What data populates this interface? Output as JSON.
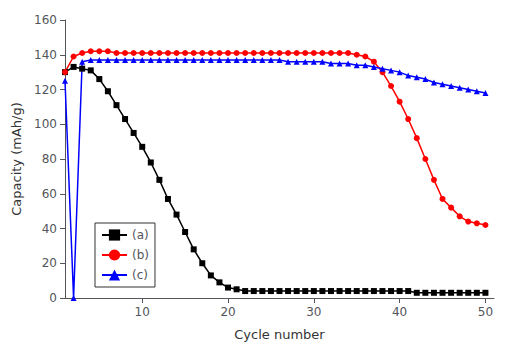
{
  "chart_data": {
    "type": "line",
    "xlabel": "Cycle number",
    "ylabel": "Capacity (mAh/g)",
    "x": [
      1,
      2,
      3,
      4,
      5,
      6,
      7,
      8,
      9,
      10,
      11,
      12,
      13,
      14,
      15,
      16,
      17,
      18,
      19,
      20,
      21,
      22,
      23,
      24,
      25,
      26,
      27,
      28,
      29,
      30,
      31,
      32,
      33,
      34,
      35,
      36,
      37,
      38,
      39,
      40,
      41,
      42,
      43,
      44,
      45,
      46,
      47,
      48,
      49,
      50
    ],
    "series": [
      {
        "name": "(a)",
        "color": "#000000",
        "marker": "square",
        "values": [
          130,
          133,
          132,
          131,
          126,
          119,
          111,
          103,
          95,
          87,
          78,
          68,
          57,
          48,
          38,
          28,
          20,
          13,
          9,
          6,
          5,
          4,
          4,
          4,
          4,
          4,
          4,
          4,
          4,
          4,
          4,
          4,
          4,
          4,
          4,
          4,
          4,
          4,
          4,
          4,
          4,
          3,
          3,
          3,
          3,
          3,
          3,
          3,
          3,
          3
        ]
      },
      {
        "name": "(b)",
        "color": "#ff0000",
        "marker": "circle",
        "values": [
          130,
          139,
          141,
          142,
          142,
          142,
          141,
          141,
          141,
          141,
          141,
          141,
          141,
          141,
          141,
          141,
          141,
          141,
          141,
          141,
          141,
          141,
          141,
          141,
          141,
          141,
          141,
          141,
          141,
          141,
          141,
          141,
          141,
          141,
          140,
          139,
          136,
          130,
          122,
          113,
          103,
          92,
          80,
          68,
          57,
          52,
          47,
          44,
          43,
          42
        ]
      },
      {
        "name": "(c)",
        "color": "#0000ff",
        "marker": "triangle",
        "values": [
          125,
          0,
          136,
          137,
          137,
          137,
          137,
          137,
          137,
          137,
          137,
          137,
          137,
          137,
          137,
          137,
          137,
          137,
          137,
          137,
          137,
          137,
          137,
          137,
          137,
          137,
          136,
          136,
          136,
          136,
          136,
          135,
          135,
          135,
          134,
          134,
          133,
          132,
          131,
          130,
          128,
          127,
          126,
          124,
          123,
          122,
          121,
          120,
          119,
          118
        ]
      }
    ],
    "xlim": [
      1,
      51
    ],
    "xticks": [
      10,
      20,
      30,
      40,
      50
    ],
    "ylim": [
      0,
      160
    ],
    "yticks": [
      0,
      20,
      40,
      60,
      80,
      100,
      120,
      140,
      160
    ],
    "grid": false,
    "legend": "lower left"
  }
}
